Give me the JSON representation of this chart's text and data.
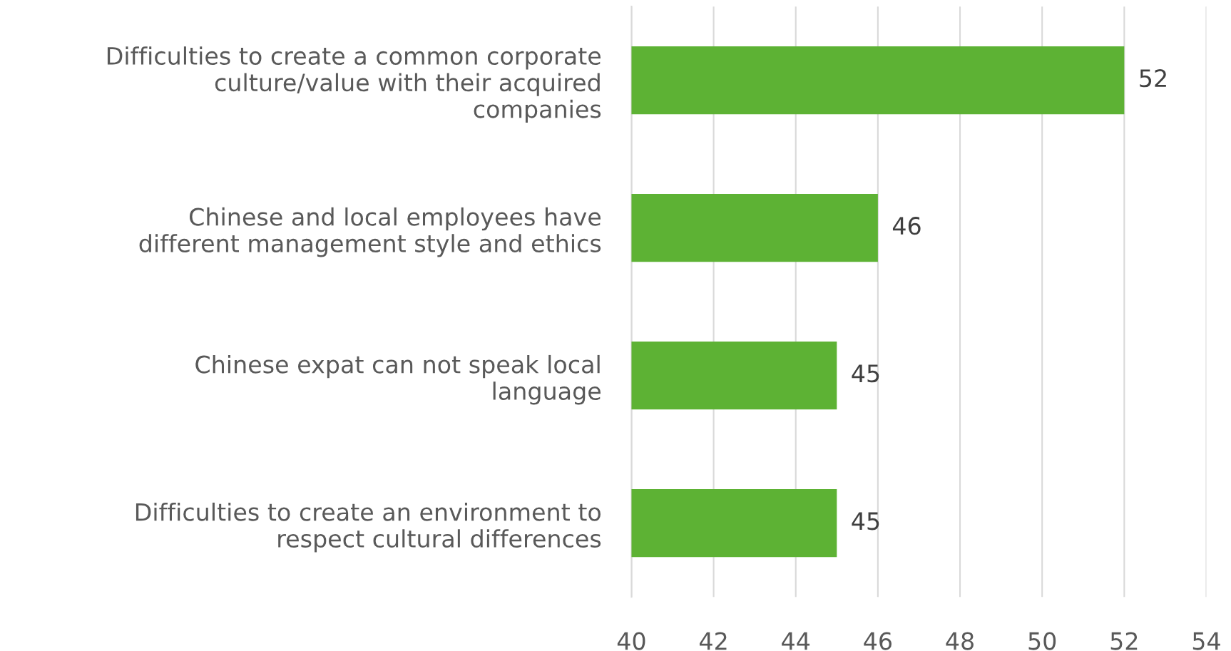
{
  "chart_data": {
    "type": "bar",
    "orientation": "horizontal",
    "categories": [
      "Difficulties to create a common corporate\nculture/value with their acquired\ncompanies",
      "Chinese and local employees have\ndifferent management style and ethics",
      "Chinese expat can not speak local\nlanguage",
      "Difficulties to create an environment to\nrespect cultural differences"
    ],
    "values": [
      52,
      46,
      45,
      45
    ],
    "color": "#5db234",
    "xlim": [
      40,
      54
    ],
    "xticks": [
      40,
      42,
      44,
      46,
      48,
      50,
      52,
      54
    ],
    "grid": "x",
    "data_labels": true,
    "legend": false
  }
}
